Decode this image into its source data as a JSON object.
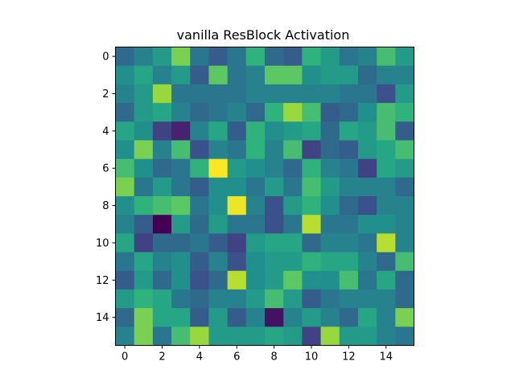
{
  "chart_data": {
    "type": "heatmap",
    "title": "vanilla ResBlock Activation",
    "colormap": "viridis",
    "rows": 16,
    "cols": 16,
    "xticks": [
      0,
      2,
      4,
      6,
      8,
      10,
      12,
      14
    ],
    "yticks": [
      0,
      2,
      4,
      6,
      8,
      10,
      12,
      14
    ],
    "xlim": [
      -0.5,
      15.5
    ],
    "ylim": [
      15.5,
      -0.5
    ],
    "vmin": 0,
    "vmax": 1,
    "values": [
      [
        0.35,
        0.45,
        0.55,
        0.8,
        0.4,
        0.3,
        0.4,
        0.65,
        0.35,
        0.3,
        0.65,
        0.55,
        0.4,
        0.45,
        0.7,
        0.55
      ],
      [
        0.5,
        0.6,
        0.45,
        0.55,
        0.3,
        0.75,
        0.4,
        0.45,
        0.75,
        0.75,
        0.5,
        0.55,
        0.55,
        0.35,
        0.45,
        0.45
      ],
      [
        0.45,
        0.55,
        0.85,
        0.4,
        0.4,
        0.4,
        0.4,
        0.45,
        0.45,
        0.45,
        0.45,
        0.45,
        0.4,
        0.4,
        0.25,
        0.55
      ],
      [
        0.35,
        0.55,
        0.6,
        0.45,
        0.35,
        0.4,
        0.45,
        0.35,
        0.65,
        0.85,
        0.7,
        0.3,
        0.35,
        0.5,
        0.7,
        0.65
      ],
      [
        0.6,
        0.5,
        0.2,
        0.1,
        0.45,
        0.6,
        0.3,
        0.65,
        0.5,
        0.55,
        0.6,
        0.35,
        0.6,
        0.55,
        0.7,
        0.3
      ],
      [
        0.5,
        0.8,
        0.45,
        0.7,
        0.25,
        0.45,
        0.4,
        0.65,
        0.45,
        0.7,
        0.2,
        0.35,
        0.3,
        0.55,
        0.6,
        0.7
      ],
      [
        0.7,
        0.5,
        0.35,
        0.4,
        0.65,
        1.0,
        0.55,
        0.5,
        0.45,
        0.35,
        0.65,
        0.45,
        0.4,
        0.2,
        0.6,
        0.55
      ],
      [
        0.8,
        0.4,
        0.55,
        0.4,
        0.3,
        0.5,
        0.5,
        0.4,
        0.55,
        0.4,
        0.7,
        0.55,
        0.45,
        0.45,
        0.45,
        0.35
      ],
      [
        0.5,
        0.65,
        0.7,
        0.75,
        0.4,
        0.5,
        0.98,
        0.45,
        0.25,
        0.55,
        0.65,
        0.5,
        0.35,
        0.25,
        0.45,
        0.45
      ],
      [
        0.45,
        0.3,
        0.0,
        0.55,
        0.35,
        0.55,
        0.4,
        0.4,
        0.25,
        0.4,
        0.9,
        0.4,
        0.4,
        0.5,
        0.5,
        0.45
      ],
      [
        0.6,
        0.2,
        0.35,
        0.35,
        0.4,
        0.3,
        0.2,
        0.55,
        0.6,
        0.6,
        0.35,
        0.45,
        0.45,
        0.4,
        0.9,
        0.45
      ],
      [
        0.4,
        0.6,
        0.45,
        0.5,
        0.3,
        0.45,
        0.25,
        0.5,
        0.55,
        0.55,
        0.65,
        0.6,
        0.6,
        0.45,
        0.35,
        0.7
      ],
      [
        0.3,
        0.55,
        0.35,
        0.5,
        0.25,
        0.35,
        0.9,
        0.5,
        0.55,
        0.75,
        0.5,
        0.5,
        0.7,
        0.4,
        0.6,
        0.35
      ],
      [
        0.55,
        0.65,
        0.6,
        0.4,
        0.35,
        0.45,
        0.45,
        0.55,
        0.7,
        0.55,
        0.3,
        0.4,
        0.45,
        0.45,
        0.45,
        0.35
      ],
      [
        0.35,
        0.8,
        0.6,
        0.6,
        0.3,
        0.55,
        0.3,
        0.45,
        0.05,
        0.45,
        0.55,
        0.45,
        0.35,
        0.6,
        0.45,
        0.8
      ],
      [
        0.45,
        0.8,
        0.4,
        0.7,
        0.85,
        0.55,
        0.55,
        0.55,
        0.6,
        0.55,
        0.2,
        0.85,
        0.55,
        0.55,
        0.45,
        0.4
      ]
    ]
  }
}
